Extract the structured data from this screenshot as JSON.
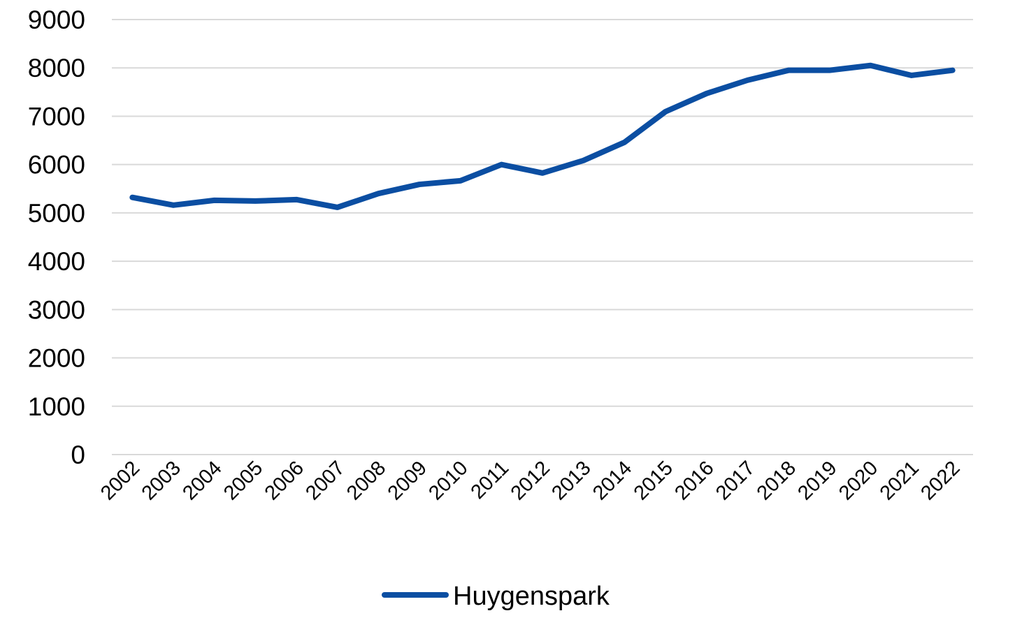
{
  "chart_data": {
    "type": "line",
    "categories": [
      "2002",
      "2003",
      "2004",
      "2005",
      "2006",
      "2007",
      "2008",
      "2009",
      "2010",
      "2011",
      "2012",
      "2013",
      "2014",
      "2015",
      "2016",
      "2017",
      "2018",
      "2019",
      "2020",
      "2021",
      "2022"
    ],
    "series": [
      {
        "name": "Huygenspark",
        "color": "#0b4ea2",
        "values": [
          5320,
          5160,
          5260,
          5245,
          5275,
          5115,
          5400,
          5590,
          5665,
          6000,
          5825,
          6085,
          6460,
          7095,
          7470,
          7745,
          7950,
          7950,
          8050,
          7845,
          7950
        ]
      }
    ],
    "ylim": [
      0,
      9000
    ],
    "yticks": [
      0,
      1000,
      2000,
      3000,
      4000,
      5000,
      6000,
      7000,
      8000,
      9000
    ],
    "grid": true,
    "legend": "bottom"
  }
}
